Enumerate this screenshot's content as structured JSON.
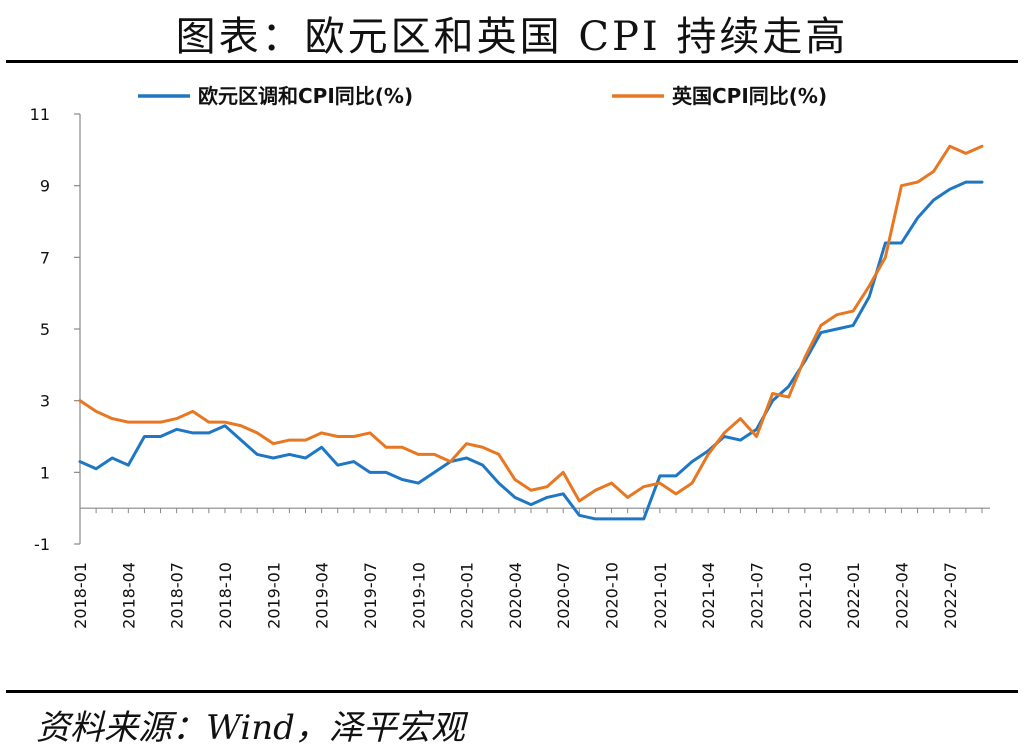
{
  "header": {
    "title": "图表：欧元区和英国 CPI 持续走高"
  },
  "footer": {
    "source": "资料来源：Wind，泽平宏观"
  },
  "chart_data": {
    "type": "line",
    "title": "",
    "xlabel": "",
    "ylabel": "",
    "ylim": [
      -1,
      11
    ],
    "yticks": [
      -1,
      1,
      3,
      5,
      7,
      9,
      11
    ],
    "grid": false,
    "legend_position": "top",
    "x": [
      "2018-01",
      "2018-02",
      "2018-03",
      "2018-04",
      "2018-05",
      "2018-06",
      "2018-07",
      "2018-08",
      "2018-09",
      "2018-10",
      "2018-11",
      "2018-12",
      "2019-01",
      "2019-02",
      "2019-03",
      "2019-04",
      "2019-05",
      "2019-06",
      "2019-07",
      "2019-08",
      "2019-09",
      "2019-10",
      "2019-11",
      "2019-12",
      "2020-01",
      "2020-02",
      "2020-03",
      "2020-04",
      "2020-05",
      "2020-06",
      "2020-07",
      "2020-08",
      "2020-09",
      "2020-10",
      "2020-11",
      "2020-12",
      "2021-01",
      "2021-02",
      "2021-03",
      "2021-04",
      "2021-05",
      "2021-06",
      "2021-07",
      "2021-08",
      "2021-09",
      "2021-10",
      "2021-11",
      "2021-12",
      "2022-01",
      "2022-02",
      "2022-03",
      "2022-04",
      "2022-05",
      "2022-06",
      "2022-07",
      "2022-08",
      "2022-09"
    ],
    "xtick_labels": [
      "2018-01",
      "2018-04",
      "2018-07",
      "2018-10",
      "2019-01",
      "2019-04",
      "2019-07",
      "2019-10",
      "2020-01",
      "2020-04",
      "2020-07",
      "2020-10",
      "2021-01",
      "2021-04",
      "2021-07",
      "2021-10",
      "2022-01",
      "2022-04",
      "2022-07"
    ],
    "series": [
      {
        "name": "欧元区调和CPI同比(%)",
        "color": "#1f77c4",
        "values": [
          1.3,
          1.1,
          1.4,
          1.2,
          2.0,
          2.0,
          2.2,
          2.1,
          2.1,
          2.3,
          1.9,
          1.5,
          1.4,
          1.5,
          1.4,
          1.7,
          1.2,
          1.3,
          1.0,
          1.0,
          0.8,
          0.7,
          1.0,
          1.3,
          1.4,
          1.2,
          0.7,
          0.3,
          0.1,
          0.3,
          0.4,
          -0.2,
          -0.3,
          -0.3,
          -0.3,
          -0.3,
          0.9,
          0.9,
          1.3,
          1.6,
          2.0,
          1.9,
          2.2,
          3.0,
          3.4,
          4.1,
          4.9,
          5.0,
          5.1,
          5.9,
          7.4,
          7.4,
          8.1,
          8.6,
          8.9,
          9.1,
          9.1
        ]
      },
      {
        "name": "英国CPI同比(%)",
        "color": "#e87722",
        "values": [
          3.0,
          2.7,
          2.5,
          2.4,
          2.4,
          2.4,
          2.5,
          2.7,
          2.4,
          2.4,
          2.3,
          2.1,
          1.8,
          1.9,
          1.9,
          2.1,
          2.0,
          2.0,
          2.1,
          1.7,
          1.7,
          1.5,
          1.5,
          1.3,
          1.8,
          1.7,
          1.5,
          0.8,
          0.5,
          0.6,
          1.0,
          0.2,
          0.5,
          0.7,
          0.3,
          0.6,
          0.7,
          0.4,
          0.7,
          1.5,
          2.1,
          2.5,
          2.0,
          3.2,
          3.1,
          4.2,
          5.1,
          5.4,
          5.5,
          6.2,
          7.0,
          9.0,
          9.1,
          9.4,
          10.1,
          9.9,
          10.1
        ]
      }
    ]
  }
}
